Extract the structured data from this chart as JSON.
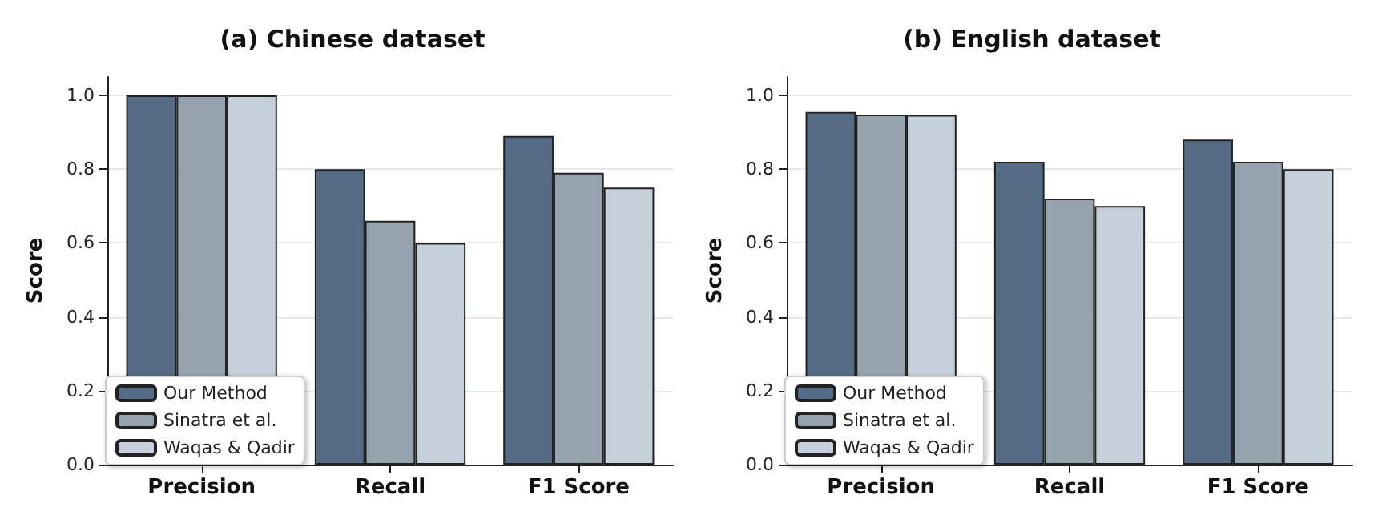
{
  "chart_data": [
    {
      "type": "bar",
      "title": "(a) Chinese dataset",
      "ylabel": "Score",
      "categories": [
        "Precision",
        "Recall",
        "F1 Score"
      ],
      "series": [
        {
          "name": "Our Method",
          "color": "#566b86",
          "values": [
            1.0,
            0.8,
            0.89
          ]
        },
        {
          "name": "Sinatra et al.",
          "color": "#95a3ae",
          "values": [
            1.0,
            0.66,
            0.79
          ]
        },
        {
          "name": "Waqas & Qadir",
          "color": "#c6d0da",
          "values": [
            1.0,
            0.6,
            0.75
          ]
        }
      ],
      "ylim": [
        0,
        1.05
      ],
      "yticks": [
        {
          "value": 0,
          "label": "0.0"
        },
        {
          "value": 0.2,
          "label": "0.2"
        },
        {
          "value": 0.4,
          "label": "0.4"
        },
        {
          "value": 0.6,
          "label": "0.6"
        },
        {
          "value": 0.8,
          "label": "0.8"
        },
        {
          "value": 1,
          "label": "1.0"
        }
      ],
      "grid": "y",
      "legend": "bottom left"
    },
    {
      "type": "bar",
      "title": "(b) English dataset",
      "ylabel": "Score",
      "categories": [
        "Precision",
        "Recall",
        "F1 Score"
      ],
      "series": [
        {
          "name": "Our Method",
          "color": "#566b86",
          "values": [
            0.955,
            0.82,
            0.88
          ]
        },
        {
          "name": "Sinatra et al.",
          "color": "#95a3ae",
          "values": [
            0.948,
            0.72,
            0.82
          ]
        },
        {
          "name": "Waqas & Qadir",
          "color": "#c6d0da",
          "values": [
            0.947,
            0.7,
            0.8
          ]
        }
      ],
      "ylim": [
        0,
        1.05
      ],
      "yticks": [
        {
          "value": 0,
          "label": "0.0"
        },
        {
          "value": 0.2,
          "label": "0.2"
        },
        {
          "value": 0.4,
          "label": "0.4"
        },
        {
          "value": 0.6,
          "label": "0.6"
        },
        {
          "value": 0.8,
          "label": "0.8"
        },
        {
          "value": 1,
          "label": "1.0"
        }
      ],
      "grid": "y",
      "legend": "bottom left"
    }
  ]
}
